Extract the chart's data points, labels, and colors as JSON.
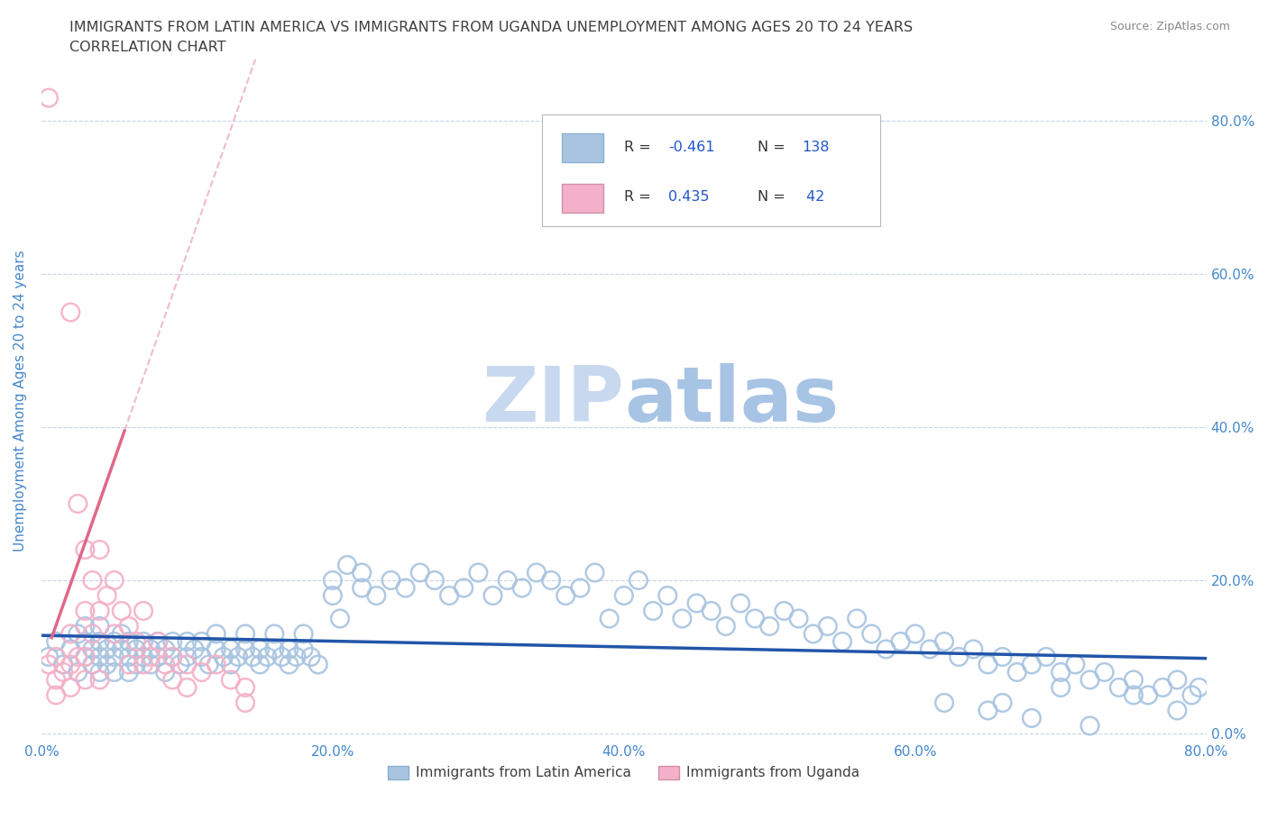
{
  "title_line1": "IMMIGRANTS FROM LATIN AMERICA VS IMMIGRANTS FROM UGANDA UNEMPLOYMENT AMONG AGES 20 TO 24 YEARS",
  "title_line2": "CORRELATION CHART",
  "source_text": "Source: ZipAtlas.com",
  "ylabel": "Unemployment Among Ages 20 to 24 years",
  "xlim": [
    0.0,
    0.8
  ],
  "ylim": [
    -0.01,
    0.88
  ],
  "yticks": [
    0.0,
    0.2,
    0.4,
    0.6,
    0.8
  ],
  "xticks": [
    0.0,
    0.2,
    0.4,
    0.6,
    0.8
  ],
  "blue_color": "#a8c4e0",
  "pink_color": "#f4b0c8",
  "blue_line_color": "#2255aa",
  "pink_line_color": "#e06888",
  "title_color": "#404040",
  "axis_label_color": "#4488cc",
  "watermark_color": "#d0dff0",
  "legend_R_color": "#2255cc",
  "background_color": "#ffffff",
  "grid_color": "#c8d4e8",
  "blue_scatter_x": [
    0.005,
    0.01,
    0.015,
    0.02,
    0.025,
    0.025,
    0.03,
    0.03,
    0.03,
    0.035,
    0.035,
    0.04,
    0.04,
    0.04,
    0.04,
    0.045,
    0.045,
    0.05,
    0.05,
    0.05,
    0.055,
    0.055,
    0.06,
    0.06,
    0.06,
    0.065,
    0.065,
    0.07,
    0.07,
    0.075,
    0.075,
    0.08,
    0.08,
    0.085,
    0.085,
    0.09,
    0.09,
    0.095,
    0.1,
    0.1,
    0.105,
    0.11,
    0.11,
    0.115,
    0.12,
    0.12,
    0.125,
    0.13,
    0.13,
    0.135,
    0.14,
    0.14,
    0.145,
    0.15,
    0.15,
    0.155,
    0.16,
    0.16,
    0.165,
    0.17,
    0.17,
    0.175,
    0.18,
    0.18,
    0.185,
    0.19,
    0.2,
    0.2,
    0.205,
    0.21,
    0.22,
    0.22,
    0.23,
    0.24,
    0.25,
    0.26,
    0.27,
    0.28,
    0.29,
    0.3,
    0.31,
    0.32,
    0.33,
    0.34,
    0.35,
    0.36,
    0.37,
    0.38,
    0.39,
    0.4,
    0.41,
    0.42,
    0.43,
    0.44,
    0.45,
    0.46,
    0.47,
    0.48,
    0.49,
    0.5,
    0.51,
    0.52,
    0.53,
    0.54,
    0.55,
    0.56,
    0.57,
    0.58,
    0.59,
    0.6,
    0.61,
    0.62,
    0.63,
    0.64,
    0.65,
    0.66,
    0.67,
    0.68,
    0.69,
    0.7,
    0.71,
    0.72,
    0.73,
    0.74,
    0.75,
    0.76,
    0.77,
    0.78,
    0.79,
    0.795,
    0.62,
    0.65,
    0.68,
    0.72,
    0.75,
    0.78,
    0.66,
    0.7
  ],
  "blue_scatter_y": [
    0.1,
    0.12,
    0.09,
    0.11,
    0.13,
    0.08,
    0.1,
    0.12,
    0.14,
    0.09,
    0.11,
    0.1,
    0.12,
    0.08,
    0.14,
    0.11,
    0.09,
    0.1,
    0.12,
    0.08,
    0.11,
    0.13,
    0.1,
    0.12,
    0.08,
    0.11,
    0.09,
    0.1,
    0.12,
    0.11,
    0.09,
    0.1,
    0.12,
    0.11,
    0.08,
    0.1,
    0.12,
    0.09,
    0.1,
    0.12,
    0.11,
    0.1,
    0.12,
    0.09,
    0.11,
    0.13,
    0.1,
    0.11,
    0.09,
    0.1,
    0.11,
    0.13,
    0.1,
    0.11,
    0.09,
    0.1,
    0.11,
    0.13,
    0.1,
    0.11,
    0.09,
    0.1,
    0.11,
    0.13,
    0.1,
    0.09,
    0.18,
    0.2,
    0.15,
    0.22,
    0.19,
    0.21,
    0.18,
    0.2,
    0.19,
    0.21,
    0.2,
    0.18,
    0.19,
    0.21,
    0.18,
    0.2,
    0.19,
    0.21,
    0.2,
    0.18,
    0.19,
    0.21,
    0.15,
    0.18,
    0.2,
    0.16,
    0.18,
    0.15,
    0.17,
    0.16,
    0.14,
    0.17,
    0.15,
    0.14,
    0.16,
    0.15,
    0.13,
    0.14,
    0.12,
    0.15,
    0.13,
    0.11,
    0.12,
    0.13,
    0.11,
    0.12,
    0.1,
    0.11,
    0.09,
    0.1,
    0.08,
    0.09,
    0.1,
    0.08,
    0.09,
    0.07,
    0.08,
    0.06,
    0.07,
    0.05,
    0.06,
    0.07,
    0.05,
    0.06,
    0.04,
    0.03,
    0.02,
    0.01,
    0.05,
    0.03,
    0.04,
    0.06
  ],
  "pink_scatter_x": [
    0.005,
    0.005,
    0.01,
    0.01,
    0.01,
    0.015,
    0.02,
    0.02,
    0.02,
    0.02,
    0.025,
    0.025,
    0.03,
    0.03,
    0.03,
    0.03,
    0.035,
    0.035,
    0.04,
    0.04,
    0.04,
    0.045,
    0.05,
    0.05,
    0.055,
    0.06,
    0.06,
    0.065,
    0.07,
    0.07,
    0.075,
    0.08,
    0.085,
    0.09,
    0.09,
    0.1,
    0.1,
    0.11,
    0.12,
    0.13,
    0.14,
    0.14
  ],
  "pink_scatter_y": [
    0.83,
    0.09,
    0.1,
    0.07,
    0.05,
    0.08,
    0.55,
    0.13,
    0.09,
    0.06,
    0.3,
    0.1,
    0.24,
    0.16,
    0.1,
    0.07,
    0.2,
    0.13,
    0.24,
    0.16,
    0.07,
    0.18,
    0.2,
    0.13,
    0.16,
    0.14,
    0.09,
    0.12,
    0.16,
    0.09,
    0.1,
    0.12,
    0.09,
    0.1,
    0.07,
    0.09,
    0.06,
    0.08,
    0.09,
    0.07,
    0.06,
    0.04
  ],
  "blue_line_x0": 0.0,
  "blue_line_y0": 0.128,
  "blue_line_x1": 0.8,
  "blue_line_y1": 0.098,
  "pink_line_solid_x0": 0.007,
  "pink_line_solid_y0": 0.125,
  "pink_line_solid_x1": 0.057,
  "pink_line_solid_y1": 0.395,
  "pink_line_dash_x1": 0.27,
  "fig_width": 14.06,
  "fig_height": 9.3
}
